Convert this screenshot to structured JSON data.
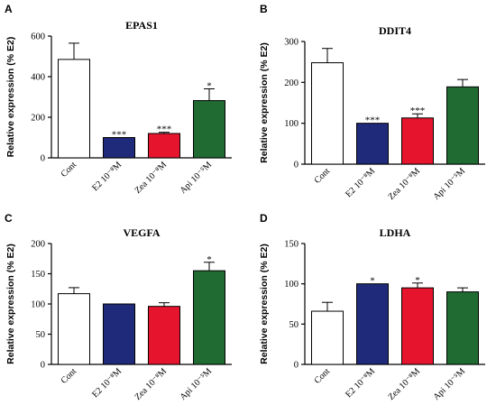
{
  "chart_data": [
    {
      "type": "bar",
      "panel": "A",
      "title": "EPAS1",
      "ylabel": "Relative expression (% E2)",
      "categories": [
        "Cont",
        "E2 10⁻⁸M",
        "Zea 10⁻⁸M",
        "Api 10⁻⁵M"
      ],
      "values": [
        485,
        100,
        120,
        282
      ],
      "errors": [
        80,
        0,
        6,
        58
      ],
      "significance": [
        "",
        "***",
        "***",
        "*"
      ],
      "colors": [
        "#ffffff",
        "#1f2a7a",
        "#e6142d",
        "#1f6b32"
      ],
      "ylim": [
        0,
        600
      ],
      "yticks": [
        0,
        200,
        400,
        600
      ]
    },
    {
      "type": "bar",
      "panel": "B",
      "title": "DDIT4",
      "ylabel": "Relative expression (% E2)",
      "categories": [
        "Cont",
        "E2 10⁻⁸M",
        "Zea 10⁻⁸M",
        "Api 10⁻⁵M"
      ],
      "values": [
        248,
        100,
        113,
        189
      ],
      "errors": [
        35,
        0,
        10,
        18
      ],
      "significance": [
        "",
        "***",
        "***",
        ""
      ],
      "colors": [
        "#ffffff",
        "#1f2a7a",
        "#e6142d",
        "#1f6b32"
      ],
      "ylim": [
        0,
        300
      ],
      "yticks": [
        0,
        100,
        200,
        300
      ]
    },
    {
      "type": "bar",
      "panel": "C",
      "title": "VEGFA",
      "ylabel": "Relative expression (% E2)",
      "categories": [
        "Cont",
        "E2 10⁻⁸M",
        "Zea 10⁻⁸M",
        "Api 10⁻⁵M"
      ],
      "values": [
        117,
        100,
        96,
        155
      ],
      "errors": [
        10,
        0,
        6,
        14
      ],
      "significance": [
        "",
        "",
        "",
        "*"
      ],
      "colors": [
        "#ffffff",
        "#1f2a7a",
        "#e6142d",
        "#1f6b32"
      ],
      "ylim": [
        0,
        200
      ],
      "yticks": [
        0,
        50,
        100,
        150,
        200
      ]
    },
    {
      "type": "bar",
      "panel": "D",
      "title": "LDHA",
      "ylabel": "Relative expression (% E2)",
      "categories": [
        "Cont",
        "E2 10⁻⁸M",
        "Zea 10⁻⁸M",
        "Api 10⁻⁵M"
      ],
      "values": [
        66,
        100,
        95,
        90
      ],
      "errors": [
        11,
        0,
        6,
        5
      ],
      "significance": [
        "",
        "*",
        "*",
        ""
      ],
      "colors": [
        "#ffffff",
        "#1f2a7a",
        "#e6142d",
        "#1f6b32"
      ],
      "ylim": [
        0,
        150
      ],
      "yticks": [
        0,
        50,
        100,
        150
      ]
    }
  ]
}
